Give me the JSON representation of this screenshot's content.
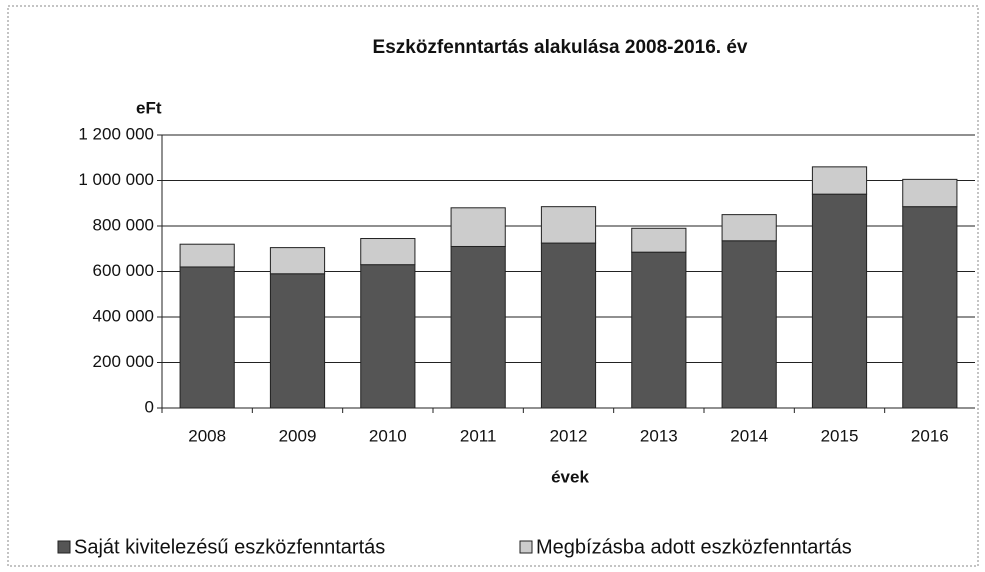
{
  "chart_data": {
    "type": "stacked_bar",
    "title": "Eszközfenntartás alakulása 2008-2016. év",
    "y_label": "eFt",
    "x_label": "évek",
    "categories": [
      "2008",
      "2009",
      "2010",
      "2011",
      "2012",
      "2013",
      "2014",
      "2015",
      "2016"
    ],
    "series": [
      {
        "name": "Saját kivitelezésű eszközfenntartás",
        "color": "#555555",
        "values": [
          620000,
          590000,
          630000,
          710000,
          725000,
          685000,
          735000,
          940000,
          885000
        ]
      },
      {
        "name": "Megbízásba adott eszközfenntartás",
        "color": "#cccccc",
        "values": [
          100000,
          115000,
          115000,
          170000,
          160000,
          105000,
          115000,
          120000,
          120000
        ]
      }
    ],
    "ylim": [
      0,
      1200000
    ],
    "yticks": [
      0,
      {
        "value": 200000,
        "label": "200 000"
      },
      {
        "value": 400000,
        "label": "400 000"
      },
      {
        "value": 600000,
        "label": "600 000"
      },
      {
        "value": 800000,
        "label": "800 000"
      },
      {
        "value": 1000000,
        "label": "1 000 000"
      },
      {
        "value": 1200000,
        "label": "1 200 000"
      }
    ],
    "grid": true,
    "legend": "bottom"
  }
}
